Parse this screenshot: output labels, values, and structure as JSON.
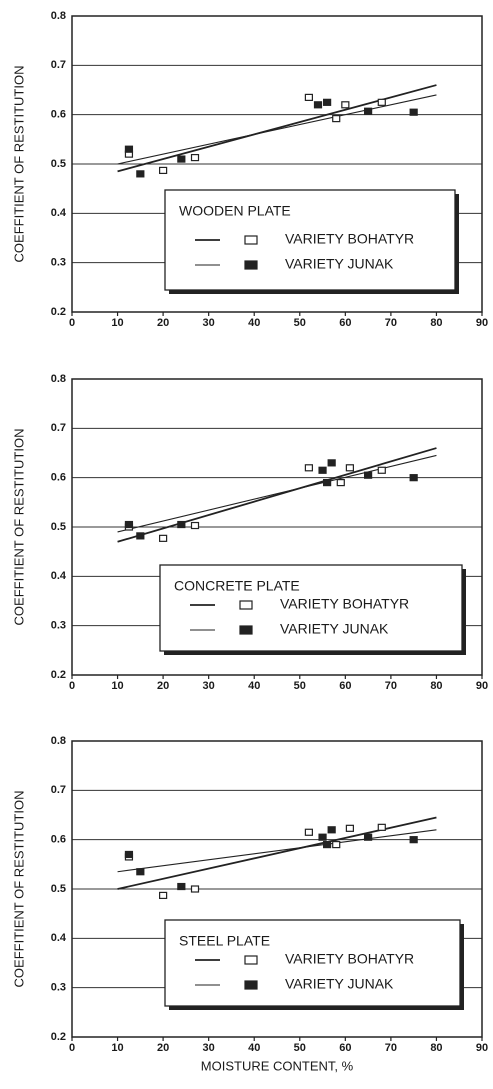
{
  "chart_data": [
    {
      "type": "scatter",
      "title": "WOODEN PLATE",
      "ylabel": "COEFFITIENT OF RESTITUTION",
      "xlim": [
        0,
        90
      ],
      "ylim": [
        0.2,
        0.8
      ],
      "xticks": [
        0,
        10,
        20,
        30,
        40,
        50,
        60,
        70,
        80,
        90
      ],
      "yticks": [
        0.2,
        0.3,
        0.4,
        0.5,
        0.6,
        0.7,
        0.8
      ],
      "grid": true,
      "series": [
        {
          "name": "VARIETY BOHATYR",
          "marker": "open",
          "color": "#222222",
          "x": [
            12.5,
            20,
            27,
            52,
            58,
            60,
            68
          ],
          "values": [
            0.52,
            0.487,
            0.513,
            0.635,
            0.592,
            0.62,
            0.625
          ],
          "trend": {
            "x": [
              10,
              80
            ],
            "y": [
              0.485,
              0.66
            ]
          }
        },
        {
          "name": "VARIETY JUNAK",
          "marker": "filled",
          "color": "#222222",
          "x": [
            12.5,
            15,
            24,
            54,
            56,
            65,
            75
          ],
          "values": [
            0.53,
            0.48,
            0.51,
            0.62,
            0.625,
            0.607,
            0.605
          ],
          "trend": {
            "x": [
              10,
              80
            ],
            "y": [
              0.5,
              0.64
            ]
          }
        }
      ]
    },
    {
      "type": "scatter",
      "title": "CONCRETE PLATE",
      "ylabel": "COEFFITIENT OF RESTITUTION",
      "xlim": [
        0,
        90
      ],
      "ylim": [
        0.2,
        0.8
      ],
      "xticks": [
        0,
        10,
        20,
        30,
        40,
        50,
        60,
        70,
        80,
        90
      ],
      "yticks": [
        0.2,
        0.3,
        0.4,
        0.5,
        0.6,
        0.7,
        0.8
      ],
      "grid": true,
      "series": [
        {
          "name": "VARIETY BOHATYR",
          "marker": "open",
          "color": "#222222",
          "x": [
            12.5,
            20,
            27,
            52,
            59,
            61,
            68
          ],
          "values": [
            0.5,
            0.477,
            0.503,
            0.62,
            0.59,
            0.62,
            0.615
          ],
          "trend": {
            "x": [
              10,
              80
            ],
            "y": [
              0.47,
              0.66
            ]
          }
        },
        {
          "name": "VARIETY JUNAK",
          "marker": "filled",
          "color": "#222222",
          "x": [
            12.5,
            15,
            24,
            55,
            56,
            57,
            65,
            75
          ],
          "values": [
            0.505,
            0.482,
            0.505,
            0.615,
            0.59,
            0.63,
            0.605,
            0.6
          ],
          "trend": {
            "x": [
              10,
              80
            ],
            "y": [
              0.49,
              0.645
            ]
          }
        }
      ]
    },
    {
      "type": "scatter",
      "title": "STEEL PLATE",
      "ylabel": "COEFFITIENT OF RESTITUTION",
      "xlabel": "MOISTURE CONTENT, %",
      "xlim": [
        0,
        90
      ],
      "ylim": [
        0.2,
        0.8
      ],
      "xticks": [
        0,
        10,
        20,
        30,
        40,
        50,
        60,
        70,
        80,
        90
      ],
      "yticks": [
        0.2,
        0.3,
        0.4,
        0.5,
        0.6,
        0.7,
        0.8
      ],
      "grid": true,
      "series": [
        {
          "name": "VARIETY BOHATYR",
          "marker": "open",
          "color": "#222222",
          "x": [
            12.5,
            20,
            27,
            52,
            58,
            61,
            68
          ],
          "values": [
            0.565,
            0.487,
            0.5,
            0.615,
            0.59,
            0.623,
            0.625
          ],
          "trend": {
            "x": [
              10,
              80
            ],
            "y": [
              0.5,
              0.645
            ]
          }
        },
        {
          "name": "VARIETY JUNAK",
          "marker": "filled",
          "color": "#222222",
          "x": [
            12.5,
            15,
            24,
            55,
            56,
            57,
            65,
            75
          ],
          "values": [
            0.57,
            0.535,
            0.505,
            0.605,
            0.59,
            0.62,
            0.605,
            0.6
          ],
          "trend": {
            "x": [
              10,
              80
            ],
            "y": [
              0.535,
              0.62
            ]
          }
        }
      ]
    }
  ]
}
